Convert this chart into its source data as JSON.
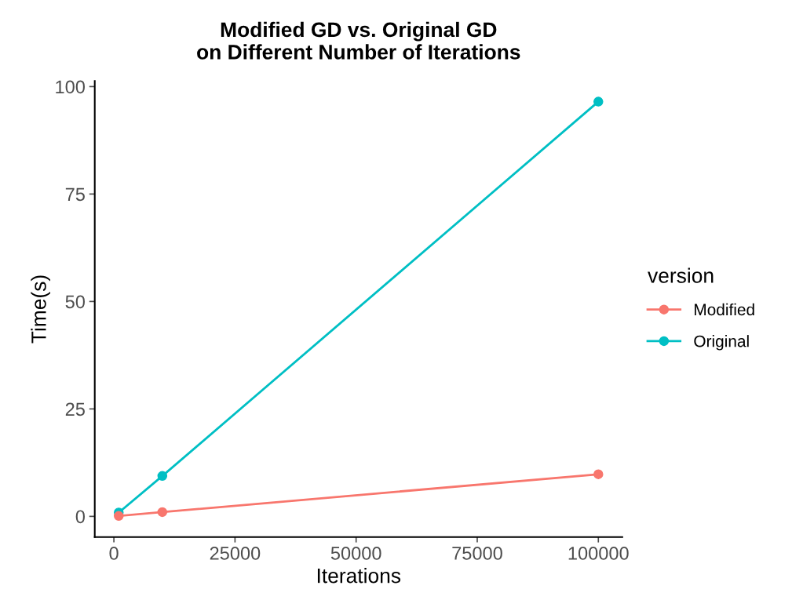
{
  "chart_data": {
    "type": "line",
    "title": "Modified GD vs. Original GD\non Different Number of Iterations",
    "xlabel": "Iterations",
    "ylabel": "Time(s)",
    "legend_title": "version",
    "x": [
      1000,
      10000,
      100000
    ],
    "series": [
      {
        "name": "Modified",
        "color": "#f8766d",
        "values": [
          0.1,
          1.0,
          9.8
        ]
      },
      {
        "name": "Original",
        "color": "#00bfc4",
        "values": [
          0.9,
          9.4,
          96.5
        ]
      }
    ],
    "xlim": [
      -3950,
      104950
    ],
    "ylim": [
      -4.8,
      101.3
    ],
    "xticks": [
      0,
      25000,
      50000,
      75000,
      100000
    ],
    "yticks": [
      0,
      25,
      50,
      75,
      100
    ],
    "grid": false,
    "legend": "right",
    "marker": "circle",
    "line_style": "solid"
  }
}
